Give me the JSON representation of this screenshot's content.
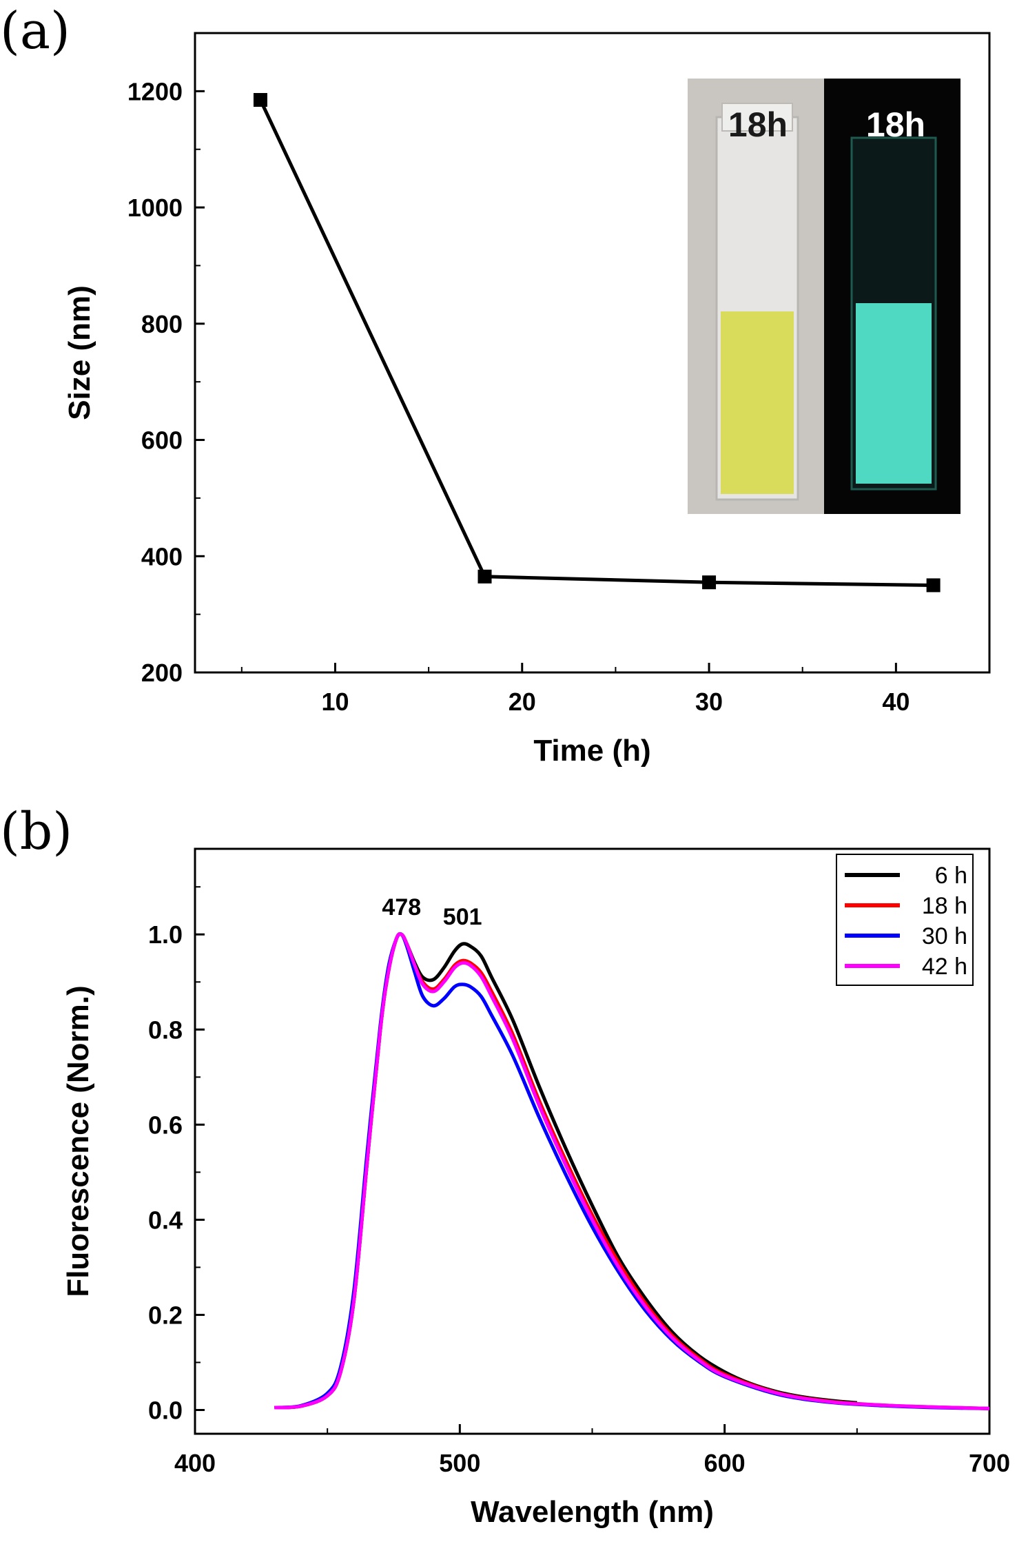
{
  "panel_a": {
    "panel_label": "(a)",
    "inset": {
      "left_label": "18h",
      "right_label": "18h",
      "colors": {
        "daylight_bg": "#c9c6c1",
        "daylight_liquid": "#d9dc5a",
        "uv_bg": "#050505",
        "uv_liquid": "#4fd8c2"
      }
    }
  },
  "panel_b": {
    "panel_label": "(b)"
  },
  "chart_data": [
    {
      "type": "line",
      "title": "",
      "xlabel": "Time (h)",
      "ylabel": "Size (nm)",
      "xlim": [
        2.5,
        45
      ],
      "ylim": [
        200,
        1300
      ],
      "xticks": [
        10,
        20,
        30,
        40
      ],
      "yticks": [
        200,
        400,
        600,
        800,
        1000,
        1200
      ],
      "grid": false,
      "marker": "square",
      "color": "#000000",
      "x": [
        6,
        18,
        30,
        42
      ],
      "y": [
        1185,
        365,
        355,
        350
      ]
    },
    {
      "type": "line",
      "title": "",
      "xlabel": "Wavelength (nm)",
      "ylabel": "Fluorescence (Norm.)",
      "xlim": [
        400,
        700
      ],
      "ylim": [
        -0.05,
        1.18
      ],
      "xticks": [
        400,
        500,
        600,
        700
      ],
      "yticks": [
        0.0,
        0.2,
        0.4,
        0.6,
        0.8,
        1.0
      ],
      "grid": false,
      "legend_position": "top-right",
      "annotations": [
        {
          "text": "478",
          "x": 478,
          "y": 1.0
        },
        {
          "text": "501",
          "x": 501,
          "y": 0.98
        }
      ],
      "series": [
        {
          "name": "6 h",
          "color": "#000000",
          "x": [
            430,
            440,
            450,
            455,
            460,
            465,
            470,
            473,
            476,
            478,
            480,
            483,
            486,
            490,
            494,
            498,
            501,
            504,
            508,
            512,
            520,
            530,
            540,
            550,
            560,
            570,
            580,
            590,
            600,
            610,
            620,
            630,
            640,
            650
          ],
          "y": [
            0.005,
            0.008,
            0.03,
            0.08,
            0.23,
            0.52,
            0.8,
            0.92,
            0.99,
            1.0,
            0.98,
            0.94,
            0.91,
            0.905,
            0.93,
            0.965,
            0.98,
            0.975,
            0.955,
            0.91,
            0.82,
            0.68,
            0.55,
            0.43,
            0.32,
            0.235,
            0.165,
            0.115,
            0.08,
            0.055,
            0.038,
            0.027,
            0.02,
            0.015
          ]
        },
        {
          "name": "18 h",
          "color": "#ff0000",
          "x": [
            430,
            440,
            450,
            455,
            460,
            465,
            470,
            473,
            476,
            478,
            480,
            483,
            486,
            490,
            494,
            498,
            501,
            504,
            508,
            512,
            520,
            530,
            540,
            550,
            560,
            570,
            580,
            590,
            600,
            620,
            640,
            660,
            680,
            700
          ],
          "y": [
            0.005,
            0.008,
            0.03,
            0.08,
            0.23,
            0.52,
            0.8,
            0.92,
            0.99,
            1.0,
            0.98,
            0.935,
            0.9,
            0.885,
            0.905,
            0.935,
            0.945,
            0.94,
            0.92,
            0.88,
            0.79,
            0.65,
            0.525,
            0.41,
            0.31,
            0.225,
            0.158,
            0.11,
            0.075,
            0.036,
            0.018,
            0.01,
            0.006,
            0.003
          ]
        },
        {
          "name": "30 h",
          "color": "#0000ff",
          "x": [
            430,
            440,
            450,
            455,
            460,
            465,
            470,
            473,
            476,
            478,
            480,
            483,
            486,
            490,
            494,
            498,
            501,
            504,
            508,
            512,
            520,
            530,
            540,
            550,
            560,
            570,
            580,
            590,
            600,
            620,
            640,
            660,
            680,
            700
          ],
          "y": [
            0.005,
            0.009,
            0.035,
            0.09,
            0.25,
            0.54,
            0.81,
            0.93,
            0.99,
            1.0,
            0.975,
            0.92,
            0.87,
            0.85,
            0.865,
            0.89,
            0.895,
            0.89,
            0.87,
            0.83,
            0.745,
            0.615,
            0.495,
            0.385,
            0.29,
            0.21,
            0.148,
            0.103,
            0.07,
            0.033,
            0.016,
            0.009,
            0.005,
            0.003
          ]
        },
        {
          "name": "42 h",
          "color": "#ff00ff",
          "x": [
            430,
            440,
            450,
            455,
            460,
            465,
            470,
            473,
            476,
            478,
            480,
            483,
            486,
            490,
            494,
            498,
            501,
            504,
            508,
            512,
            520,
            530,
            540,
            550,
            560,
            570,
            580,
            590,
            600,
            620,
            640,
            660,
            680,
            700
          ],
          "y": [
            0.005,
            0.008,
            0.03,
            0.08,
            0.23,
            0.52,
            0.8,
            0.92,
            0.99,
            1.0,
            0.98,
            0.935,
            0.895,
            0.88,
            0.9,
            0.93,
            0.94,
            0.935,
            0.912,
            0.87,
            0.78,
            0.64,
            0.515,
            0.4,
            0.3,
            0.218,
            0.153,
            0.106,
            0.072,
            0.035,
            0.017,
            0.01,
            0.006,
            0.003
          ]
        }
      ]
    }
  ]
}
